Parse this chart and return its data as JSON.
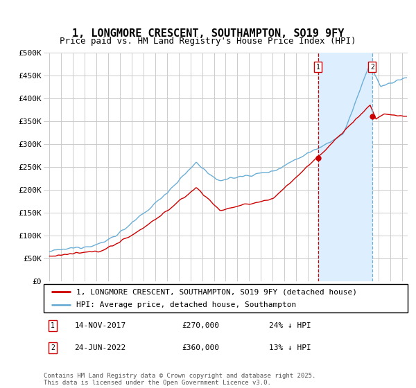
{
  "title": "1, LONGMORE CRESCENT, SOUTHAMPTON, SO19 9FY",
  "subtitle": "Price paid vs. HM Land Registry's House Price Index (HPI)",
  "ylim": [
    0,
    500000
  ],
  "yticks": [
    0,
    50000,
    100000,
    150000,
    200000,
    250000,
    300000,
    350000,
    400000,
    450000,
    500000
  ],
  "ytick_labels": [
    "£0",
    "£50K",
    "£100K",
    "£150K",
    "£200K",
    "£250K",
    "£300K",
    "£350K",
    "£400K",
    "£450K",
    "£500K"
  ],
  "hpi_color": "#6baed6",
  "price_color": "#cc0000",
  "vline1_color": "#cc0000",
  "vline2_color": "#6baed6",
  "shade_color": "#ddeeff",
  "background_color": "#ffffff",
  "grid_color": "#cccccc",
  "purchase1_date_x": 2017.87,
  "purchase1_price": 270000,
  "purchase2_date_x": 2022.48,
  "purchase2_price": 360000,
  "legend_label_price": "1, LONGMORE CRESCENT, SOUTHAMPTON, SO19 9FY (detached house)",
  "legend_label_hpi": "HPI: Average price, detached house, Southampton",
  "annotation1_date": "14-NOV-2017",
  "annotation1_price": "£270,000",
  "annotation1_pct": "24% ↓ HPI",
  "annotation2_date": "24-JUN-2022",
  "annotation2_price": "£360,000",
  "annotation2_pct": "13% ↓ HPI",
  "footer": "Contains HM Land Registry data © Crown copyright and database right 2025.\nThis data is licensed under the Open Government Licence v3.0.",
  "title_fontsize": 11,
  "subtitle_fontsize": 9,
  "tick_fontsize": 8,
  "legend_fontsize": 8,
  "annotation_fontsize": 8,
  "xmin": 1994.5,
  "xmax": 2025.5
}
